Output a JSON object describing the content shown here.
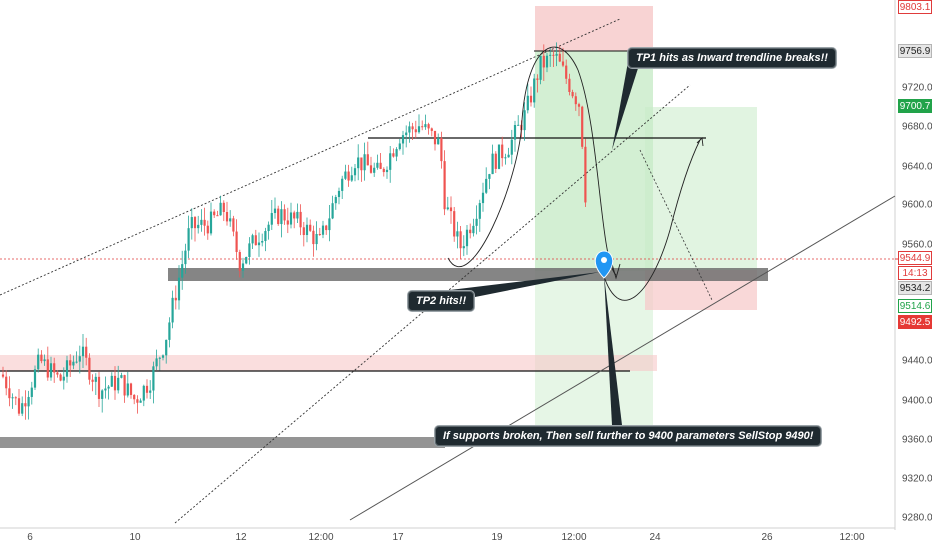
{
  "chart_data": {
    "type": "candlestick",
    "y_range": [
      9260,
      9810
    ],
    "y_ticks": [
      "9803.1",
      "9756.9",
      "9720.0",
      "9680.0",
      "9640.0",
      "9600.0",
      "9560.0",
      "9534.2",
      "9514.6",
      "9492.5",
      "9440.0",
      "9400.0",
      "9360.0",
      "9320.0",
      "9280.0"
    ],
    "x_ticks": [
      "6",
      "10",
      "12",
      "12:00",
      "17",
      "19",
      "12:00",
      "24",
      "26",
      "12:00"
    ],
    "annotations": [
      "TP1 hits as Inward trendline breaks!!",
      "TP2 hits!!",
      "If supports broken, Then sell further to 9400 parameters SellStop 9490!"
    ],
    "price_labels": [
      {
        "text": "9803.1",
        "bg": "#ffffff",
        "fg": "#e03b3b",
        "border": "#e03b3b"
      },
      {
        "text": "9756.9",
        "bg": "#e6e6e6",
        "fg": "#222222",
        "border": "#b5b5b5"
      },
      {
        "text": "9700.7",
        "bg": "#21a34a",
        "fg": "#ffffff",
        "border": "#21a34a"
      },
      {
        "text": "9544.9",
        "bg": "#ffffff",
        "fg": "#e03b3b",
        "border": "#e03b3b"
      },
      {
        "text": "14:13",
        "bg": "#ffffff",
        "fg": "#e03b3b",
        "border": "#e03b3b"
      },
      {
        "text": "9534.2",
        "bg": "#e6e6e6",
        "fg": "#222222",
        "border": "#b5b5b5"
      },
      {
        "text": "9514.6",
        "bg": "#ffffff",
        "fg": "#21a34a",
        "border": "#21a34a"
      },
      {
        "text": "9492.5",
        "bg": "#e53935",
        "fg": "#ffffff",
        "border": "#e53935"
      }
    ],
    "colors": {
      "up": "#26a69a",
      "down": "#ef5350",
      "support_zone": "#707070",
      "profit_zone": "#c8ebc8",
      "loss_zone": "#f6c8c8"
    }
  }
}
